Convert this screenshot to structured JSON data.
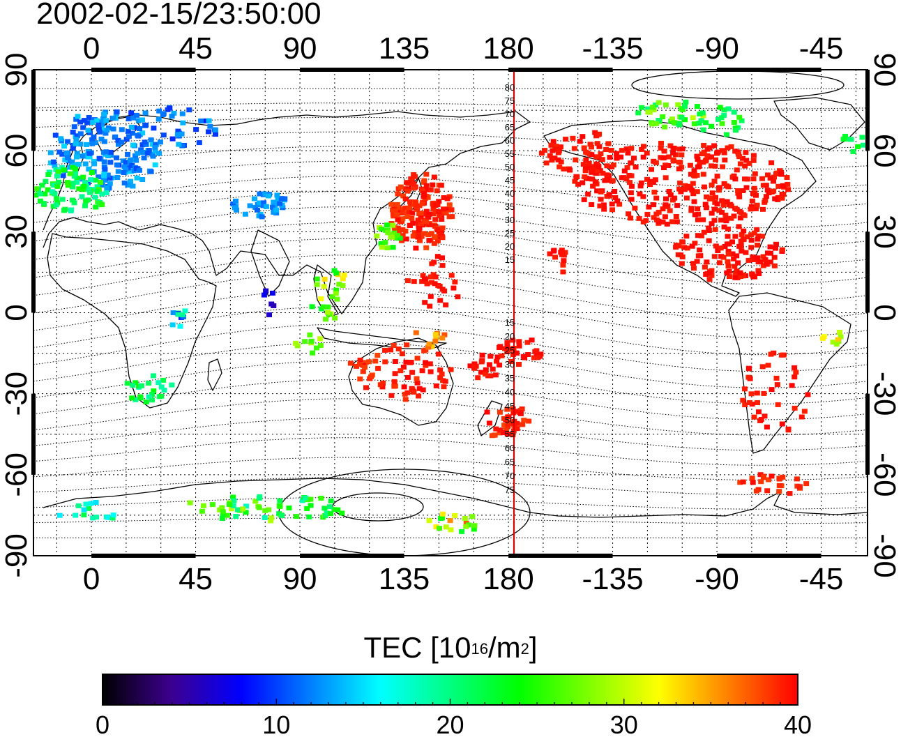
{
  "title": "2002-02-15/23:50:00",
  "map": {
    "lon_top_labels": [
      "0",
      "45",
      "90",
      "135",
      "180",
      "-135",
      "-90",
      "-45"
    ],
    "lon_bottom_labels": [
      "0",
      "45",
      "90",
      "135",
      "180",
      "-135",
      "-90",
      "-45"
    ],
    "lat_left_labels": [
      "90",
      "60",
      "30",
      "0",
      "-30",
      "-60",
      "-90"
    ],
    "lat_right_labels": [
      "90",
      "60",
      "30",
      "0",
      "-30",
      "-60",
      "-90"
    ],
    "lon_ticks": [
      0,
      45,
      90,
      135,
      180,
      225,
      270,
      315
    ],
    "lat_ticks": [
      90,
      60,
      30,
      0,
      -30,
      -60,
      -90
    ],
    "lon_range": [
      -25,
      335
    ],
    "lat_range": [
      -90,
      90
    ],
    "grid": true,
    "grid_step_deg": 15,
    "dip_labels_north": [
      "80",
      "75",
      "70",
      "65",
      "60",
      "55",
      "50",
      "45",
      "40",
      "35",
      "30",
      "25",
      "20",
      "15"
    ],
    "dip_labels_south": [
      "15",
      "20",
      "25",
      "30",
      "35",
      "40",
      "45",
      "50",
      "55",
      "60",
      "65",
      "70",
      "75"
    ],
    "meridian_line_color": "#dd0000"
  },
  "colorbar": {
    "label_main": "TEC  [10",
    "label_sup1": "16",
    "label_mid": "/m",
    "label_sup2": "2",
    "label_end": "]",
    "tick_labels": [
      "0",
      "10",
      "20",
      "30",
      "40"
    ],
    "range": [
      0,
      40
    ],
    "stops": [
      "#000000",
      "#3c0090",
      "#0000ff",
      "#0080ff",
      "#00ffff",
      "#00ff80",
      "#00ff00",
      "#80ff00",
      "#ffff00",
      "#ff8000",
      "#ff0000"
    ]
  }
}
